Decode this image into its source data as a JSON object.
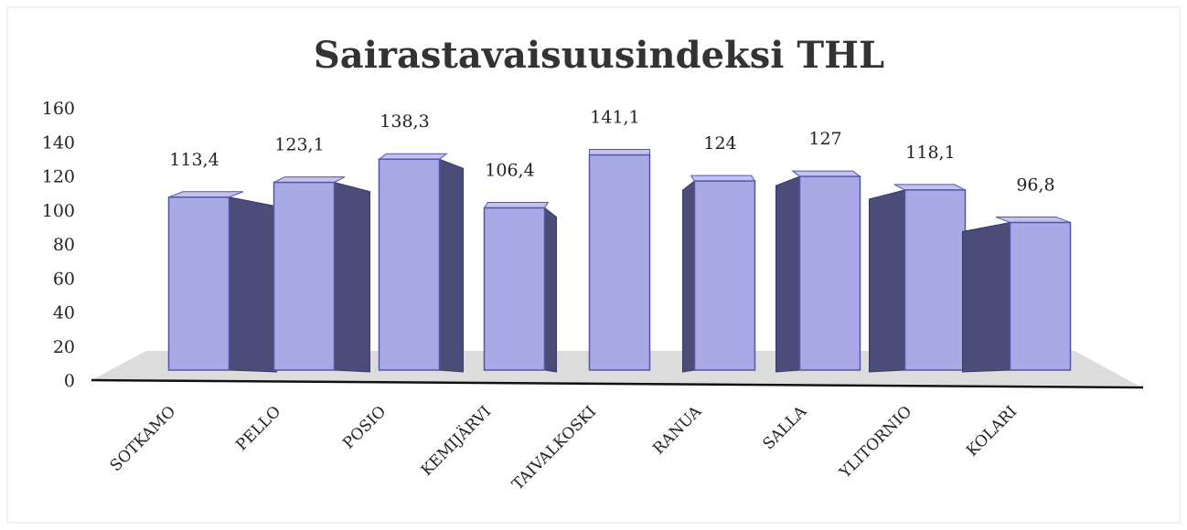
{
  "chart_data": {
    "type": "bar3d",
    "title": "Sairastavaisuusindeksi THL",
    "categories": [
      "SOTKAMO",
      "PELLO",
      "POSIO",
      "KEMIJÄRVI",
      "TAIVALKOSKI",
      "RANUA",
      "SALLA",
      "YLITORNIO",
      "KOLARI"
    ],
    "values": [
      113.4,
      123.1,
      138.3,
      106.4,
      141.1,
      124,
      127,
      118.1,
      96.8
    ],
    "value_labels": [
      "113,4",
      "123,1",
      "138,3",
      "106,4",
      "141,1",
      "124",
      "127",
      "118,1",
      "96,8"
    ],
    "color": "#a9a9e6",
    "ylim": [
      0,
      160
    ],
    "yticks": [
      0,
      20,
      40,
      60,
      80,
      100,
      120,
      140,
      160
    ]
  }
}
